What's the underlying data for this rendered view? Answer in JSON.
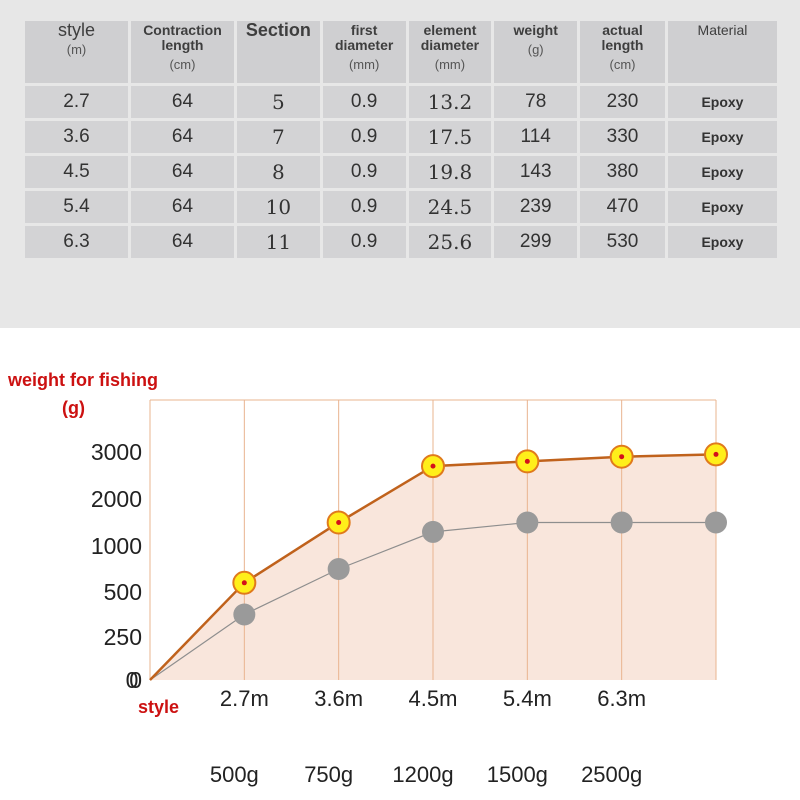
{
  "table": {
    "headers": [
      {
        "label": "style",
        "unit": "(m)"
      },
      {
        "label": "Contraction length",
        "unit": "(cm)"
      },
      {
        "label": "Section",
        "unit": ""
      },
      {
        "label": "first diameter",
        "unit": "(mm)"
      },
      {
        "label": "element diameter",
        "unit": "(mm)"
      },
      {
        "label": "weight",
        "unit": "(g)"
      },
      {
        "label": "actual length",
        "unit": "(cm)"
      },
      {
        "label": "Material",
        "unit": ""
      }
    ],
    "rows": [
      [
        "2.7",
        "64",
        "5",
        "0.9",
        "13.2",
        "78",
        "230",
        "Epoxy"
      ],
      [
        "3.6",
        "64",
        "7",
        "0.9",
        "17.5",
        "114",
        "330",
        "Epoxy"
      ],
      [
        "4.5",
        "64",
        "8",
        "0.9",
        "19.8",
        "143",
        "380",
        "Epoxy"
      ],
      [
        "5.4",
        "64",
        "10",
        "0.9",
        "24.5",
        "239",
        "470",
        "Epoxy"
      ],
      [
        "6.3",
        "64",
        "11",
        "0.9",
        "25.6",
        "299",
        "530",
        "Epoxy"
      ]
    ]
  },
  "chart_data": {
    "type": "line",
    "ylabel": "weight for fishing",
    "ylabel_unit": "(g)",
    "xlabel": "style",
    "x": [
      "0",
      "2.7m",
      "3.6m",
      "4.5m",
      "5.4m",
      "6.3m",
      ""
    ],
    "yticks": [
      "0",
      "250",
      "500",
      "1000",
      "2000",
      "3000"
    ],
    "series": [
      {
        "values": [
          0,
          600,
          1500,
          2700,
          2800,
          2900,
          2950
        ],
        "color": "#c0621c",
        "marker": "yellow"
      },
      {
        "values": [
          0,
          375,
          750,
          1300,
          1500,
          1500,
          1500
        ],
        "color": "#8e8e8e",
        "marker": "gray"
      }
    ],
    "annotations": [
      "500g",
      "750g",
      "1200g",
      "1500g",
      "2500g"
    ],
    "fill_color": "#f9e6dc",
    "grid_color": "#e9b48f",
    "grid": true
  }
}
